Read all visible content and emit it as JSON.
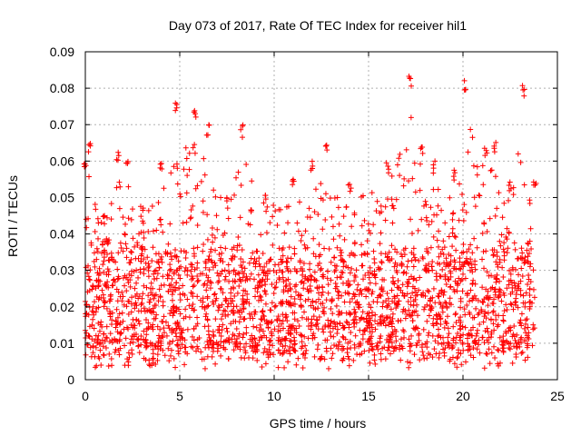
{
  "chart_data": {
    "type": "scatter",
    "title": "Day 073 of 2017, Rate Of TEC Index for receiver hil1",
    "xlabel": "GPS time / hours",
    "ylabel": "ROTI / TECUs",
    "xlim": [
      0,
      25
    ],
    "ylim": [
      0,
      0.09
    ],
    "xticks": [
      0,
      5,
      10,
      15,
      20,
      25
    ],
    "xtick_labels": [
      "0",
      "5",
      "10",
      "15",
      "20",
      "25"
    ],
    "yticks": [
      0,
      0.01,
      0.02,
      0.03,
      0.04,
      0.05,
      0.06,
      0.07,
      0.08,
      0.09
    ],
    "ytick_labels": [
      "0",
      "0.01",
      "0.02",
      "0.03",
      "0.04",
      "0.05",
      "0.06",
      "0.07",
      "0.08",
      "0.09"
    ],
    "grid": true,
    "marker": "+",
    "color": "#ff0000",
    "x_range_of_data": [
      0,
      23.8
    ],
    "typical_band": [
      0.008,
      0.035
    ],
    "envelope": [
      {
        "x": 0.0,
        "y": 0.06
      },
      {
        "x": 0.2,
        "y": 0.066
      },
      {
        "x": 1.0,
        "y": 0.045
      },
      {
        "x": 1.7,
        "y": 0.063
      },
      {
        "x": 2.2,
        "y": 0.06
      },
      {
        "x": 3.0,
        "y": 0.048
      },
      {
        "x": 4.0,
        "y": 0.06
      },
      {
        "x": 4.8,
        "y": 0.077
      },
      {
        "x": 5.8,
        "y": 0.074
      },
      {
        "x": 6.5,
        "y": 0.07
      },
      {
        "x": 7.5,
        "y": 0.05
      },
      {
        "x": 8.3,
        "y": 0.07
      },
      {
        "x": 9.5,
        "y": 0.052
      },
      {
        "x": 11.0,
        "y": 0.055
      },
      {
        "x": 12.0,
        "y": 0.06
      },
      {
        "x": 12.8,
        "y": 0.065
      },
      {
        "x": 14.0,
        "y": 0.055
      },
      {
        "x": 16.0,
        "y": 0.06
      },
      {
        "x": 17.2,
        "y": 0.084
      },
      {
        "x": 17.8,
        "y": 0.065
      },
      {
        "x": 18.5,
        "y": 0.06
      },
      {
        "x": 19.5,
        "y": 0.058
      },
      {
        "x": 20.1,
        "y": 0.083
      },
      {
        "x": 21.2,
        "y": 0.064
      },
      {
        "x": 21.7,
        "y": 0.066
      },
      {
        "x": 22.5,
        "y": 0.055
      },
      {
        "x": 23.2,
        "y": 0.081
      },
      {
        "x": 23.8,
        "y": 0.055
      }
    ]
  }
}
